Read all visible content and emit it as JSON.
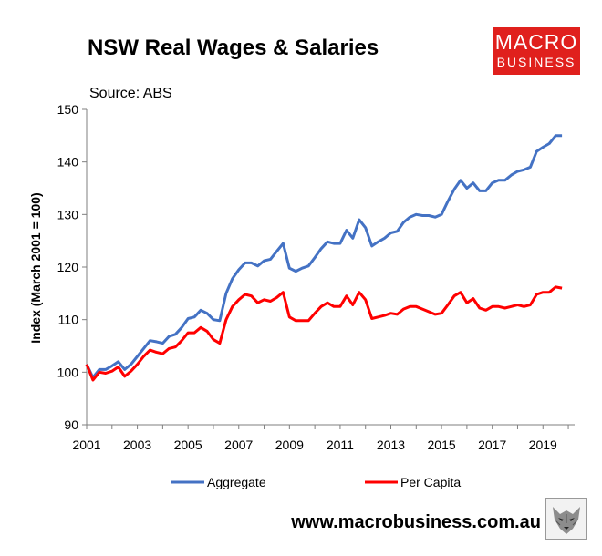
{
  "chart_data": {
    "type": "line",
    "title": "NSW Real Wages & Salaries",
    "subtitle": "Source: ABS",
    "xlabel": "",
    "ylabel": "Index (March 2001 = 100)",
    "xlim": [
      2001,
      2020.25
    ],
    "ylim": [
      90,
      150
    ],
    "yticks": [
      90,
      100,
      110,
      120,
      130,
      140,
      150
    ],
    "xticks": [
      2001,
      2003,
      2005,
      2007,
      2009,
      2011,
      2013,
      2015,
      2017,
      2019
    ],
    "grid": false,
    "legend": "bottom",
    "series": [
      {
        "name": "Aggregate",
        "color": "#4472c4",
        "points": [
          [
            2001.0,
            101.5
          ],
          [
            2001.25,
            99.0
          ],
          [
            2001.5,
            100.5
          ],
          [
            2001.75,
            100.5
          ],
          [
            2002.0,
            101.2
          ],
          [
            2002.25,
            102.0
          ],
          [
            2002.5,
            100.5
          ],
          [
            2002.75,
            101.5
          ],
          [
            2003.0,
            103.0
          ],
          [
            2003.25,
            104.5
          ],
          [
            2003.5,
            106.0
          ],
          [
            2003.75,
            105.8
          ],
          [
            2004.0,
            105.5
          ],
          [
            2004.25,
            106.8
          ],
          [
            2004.5,
            107.2
          ],
          [
            2004.75,
            108.5
          ],
          [
            2005.0,
            110.2
          ],
          [
            2005.25,
            110.5
          ],
          [
            2005.5,
            111.8
          ],
          [
            2005.75,
            111.2
          ],
          [
            2006.0,
            110.0
          ],
          [
            2006.25,
            109.8
          ],
          [
            2006.5,
            115.0
          ],
          [
            2006.75,
            117.8
          ],
          [
            2007.0,
            119.5
          ],
          [
            2007.25,
            120.8
          ],
          [
            2007.5,
            120.8
          ],
          [
            2007.75,
            120.2
          ],
          [
            2008.0,
            121.2
          ],
          [
            2008.25,
            121.5
          ],
          [
            2008.5,
            123.0
          ],
          [
            2008.75,
            124.5
          ],
          [
            2009.0,
            119.8
          ],
          [
            2009.25,
            119.2
          ],
          [
            2009.5,
            119.8
          ],
          [
            2009.75,
            120.2
          ],
          [
            2010.0,
            121.8
          ],
          [
            2010.25,
            123.5
          ],
          [
            2010.5,
            124.8
          ],
          [
            2010.75,
            124.5
          ],
          [
            2011.0,
            124.5
          ],
          [
            2011.25,
            127.0
          ],
          [
            2011.5,
            125.5
          ],
          [
            2011.75,
            129.0
          ],
          [
            2012.0,
            127.5
          ],
          [
            2012.25,
            124.0
          ],
          [
            2012.5,
            124.8
          ],
          [
            2012.75,
            125.5
          ],
          [
            2013.0,
            126.5
          ],
          [
            2013.25,
            126.8
          ],
          [
            2013.5,
            128.5
          ],
          [
            2013.75,
            129.5
          ],
          [
            2014.0,
            130.0
          ],
          [
            2014.25,
            129.8
          ],
          [
            2014.5,
            129.8
          ],
          [
            2014.75,
            129.5
          ],
          [
            2015.0,
            130.0
          ],
          [
            2015.25,
            132.5
          ],
          [
            2015.5,
            134.8
          ],
          [
            2015.75,
            136.5
          ],
          [
            2016.0,
            135.0
          ],
          [
            2016.25,
            136.0
          ],
          [
            2016.5,
            134.5
          ],
          [
            2016.75,
            134.5
          ],
          [
            2017.0,
            136.0
          ],
          [
            2017.25,
            136.5
          ],
          [
            2017.5,
            136.5
          ],
          [
            2017.75,
            137.5
          ],
          [
            2018.0,
            138.2
          ],
          [
            2018.25,
            138.5
          ],
          [
            2018.5,
            139.0
          ],
          [
            2018.75,
            142.0
          ],
          [
            2019.0,
            142.8
          ],
          [
            2019.25,
            143.5
          ],
          [
            2019.5,
            145.0
          ],
          [
            2019.75,
            145.0
          ]
        ]
      },
      {
        "name": "Per Capita",
        "color": "#ff0000",
        "points": [
          [
            2001.0,
            101.5
          ],
          [
            2001.25,
            98.5
          ],
          [
            2001.5,
            100.0
          ],
          [
            2001.75,
            99.8
          ],
          [
            2002.0,
            100.2
          ],
          [
            2002.25,
            101.0
          ],
          [
            2002.5,
            99.2
          ],
          [
            2002.75,
            100.2
          ],
          [
            2003.0,
            101.5
          ],
          [
            2003.25,
            103.0
          ],
          [
            2003.5,
            104.2
          ],
          [
            2003.75,
            103.8
          ],
          [
            2004.0,
            103.5
          ],
          [
            2004.25,
            104.5
          ],
          [
            2004.5,
            104.8
          ],
          [
            2004.75,
            106.0
          ],
          [
            2005.0,
            107.5
          ],
          [
            2005.25,
            107.5
          ],
          [
            2005.5,
            108.5
          ],
          [
            2005.75,
            107.8
          ],
          [
            2006.0,
            106.2
          ],
          [
            2006.25,
            105.5
          ],
          [
            2006.5,
            110.0
          ],
          [
            2006.75,
            112.5
          ],
          [
            2007.0,
            113.8
          ],
          [
            2007.25,
            114.8
          ],
          [
            2007.5,
            114.5
          ],
          [
            2007.75,
            113.2
          ],
          [
            2008.0,
            113.8
          ],
          [
            2008.25,
            113.5
          ],
          [
            2008.5,
            114.2
          ],
          [
            2008.75,
            115.2
          ],
          [
            2009.0,
            110.5
          ],
          [
            2009.25,
            109.8
          ],
          [
            2009.5,
            109.8
          ],
          [
            2009.75,
            109.8
          ],
          [
            2010.0,
            111.2
          ],
          [
            2010.25,
            112.5
          ],
          [
            2010.5,
            113.2
          ],
          [
            2010.75,
            112.5
          ],
          [
            2011.0,
            112.5
          ],
          [
            2011.25,
            114.5
          ],
          [
            2011.5,
            112.8
          ],
          [
            2011.75,
            115.2
          ],
          [
            2012.0,
            113.8
          ],
          [
            2012.25,
            110.2
          ],
          [
            2012.5,
            110.5
          ],
          [
            2012.75,
            110.8
          ],
          [
            2013.0,
            111.2
          ],
          [
            2013.25,
            111.0
          ],
          [
            2013.5,
            112.0
          ],
          [
            2013.75,
            112.5
          ],
          [
            2014.0,
            112.5
          ],
          [
            2014.25,
            112.0
          ],
          [
            2014.5,
            111.5
          ],
          [
            2014.75,
            111.0
          ],
          [
            2015.0,
            111.2
          ],
          [
            2015.25,
            112.8
          ],
          [
            2015.5,
            114.5
          ],
          [
            2015.75,
            115.2
          ],
          [
            2016.0,
            113.2
          ],
          [
            2016.25,
            114.0
          ],
          [
            2016.5,
            112.2
          ],
          [
            2016.75,
            111.8
          ],
          [
            2017.0,
            112.5
          ],
          [
            2017.25,
            112.5
          ],
          [
            2017.5,
            112.2
          ],
          [
            2017.75,
            112.5
          ],
          [
            2018.0,
            112.8
          ],
          [
            2018.25,
            112.5
          ],
          [
            2018.5,
            112.8
          ],
          [
            2018.75,
            114.8
          ],
          [
            2019.0,
            115.2
          ],
          [
            2019.25,
            115.2
          ],
          [
            2019.5,
            116.2
          ],
          [
            2019.75,
            116.0
          ]
        ]
      }
    ]
  },
  "logo": {
    "line1": "MACRO",
    "line2": "BUSINESS"
  },
  "footer": {
    "url": "www.macrobusiness.com.au"
  }
}
